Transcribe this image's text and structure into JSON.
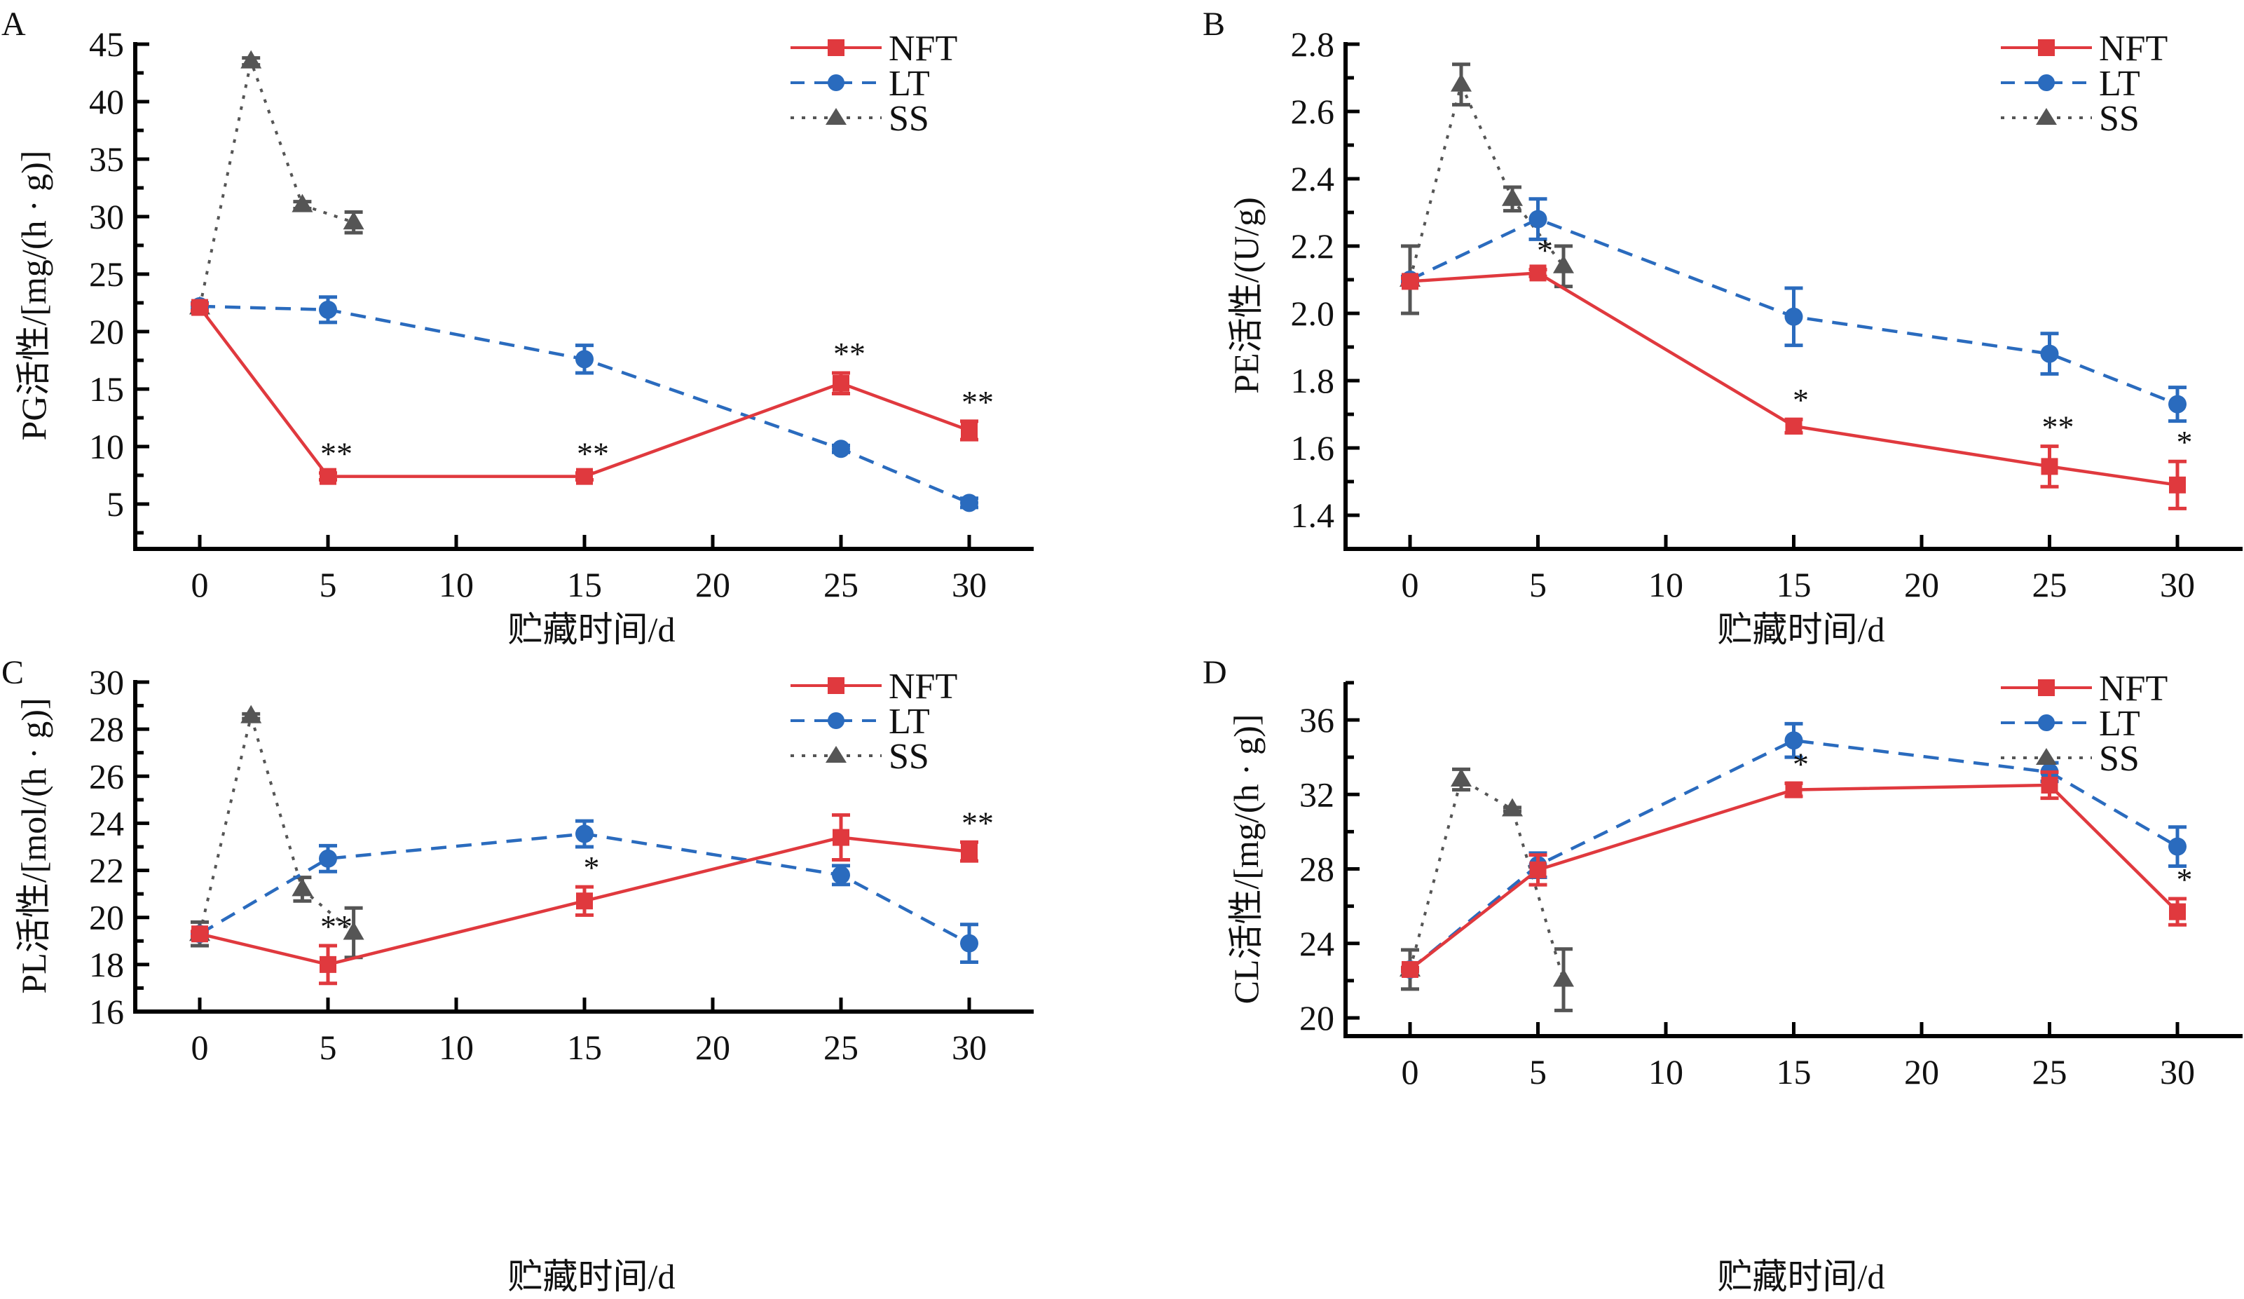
{
  "figure": {
    "colors": {
      "NFT": "#E0393E",
      "LT": "#2A6BBE",
      "SS": "#555555",
      "axis": "#000000"
    },
    "legend_labels": [
      "NFT",
      "LT",
      "SS"
    ]
  },
  "chart_data": [
    {
      "panel": "A",
      "type": "line",
      "title": "",
      "xlabel": "贮藏时间/d",
      "ylabel": "PG活性/[mg/(h · g)]",
      "xticks": [
        0,
        5,
        10,
        15,
        20,
        25,
        30
      ],
      "yticks": [
        5,
        10,
        15,
        20,
        25,
        30,
        35,
        40,
        45
      ],
      "ylim": [
        1,
        45
      ],
      "legend": "top-right",
      "series": [
        {
          "name": "NFT",
          "x": [
            0,
            5,
            15,
            25,
            30
          ],
          "values": [
            22.1,
            7.4,
            7.4,
            15.5,
            11.4
          ],
          "errors": [
            0.3,
            0.3,
            0.3,
            0.9,
            0.8
          ]
        },
        {
          "name": "LT",
          "x": [
            0,
            5,
            15,
            25,
            30
          ],
          "values": [
            22.2,
            21.9,
            17.6,
            9.8,
            5.1
          ],
          "errors": [
            0.3,
            1.1,
            1.2,
            0.3,
            0.4
          ]
        },
        {
          "name": "SS",
          "x": [
            0,
            2,
            4,
            6
          ],
          "values": [
            22.1,
            43.5,
            31.0,
            29.5
          ],
          "errors": [
            0.3,
            0.3,
            0.3,
            0.9
          ]
        }
      ],
      "annotations": [
        {
          "x": 5,
          "series": "NFT",
          "text": "**"
        },
        {
          "x": 15,
          "series": "NFT",
          "text": "**"
        },
        {
          "x": 25,
          "series": "NFT",
          "text": "**"
        },
        {
          "x": 30,
          "series": "NFT",
          "text": "**"
        }
      ]
    },
    {
      "panel": "B",
      "type": "line",
      "title": "",
      "xlabel": "贮藏时间/d",
      "ylabel": "PE活性/(U/g)",
      "xticks": [
        0,
        5,
        10,
        15,
        20,
        25,
        30
      ],
      "yticks": [
        1.4,
        1.6,
        1.8,
        2.0,
        2.2,
        2.4,
        2.6,
        2.8
      ],
      "ytick_labels": [
        "1.4",
        "1.6",
        "1.8",
        "2.0",
        "2.2",
        "2.4",
        "2.6",
        "2.8"
      ],
      "ylim": [
        1.3,
        2.8
      ],
      "legend": "top-right",
      "series": [
        {
          "name": "NFT",
          "x": [
            0,
            5,
            15,
            25,
            30
          ],
          "values": [
            2.095,
            2.12,
            1.665,
            1.545,
            1.49
          ],
          "errors": [
            0.01,
            0.01,
            0.02,
            0.06,
            0.07
          ]
        },
        {
          "name": "LT",
          "x": [
            0,
            5,
            15,
            25,
            30
          ],
          "values": [
            2.1,
            2.28,
            1.99,
            1.88,
            1.73
          ],
          "errors": [
            0.01,
            0.06,
            0.085,
            0.06,
            0.05
          ]
        },
        {
          "name": "SS",
          "x": [
            0,
            2,
            4,
            6
          ],
          "values": [
            2.1,
            2.68,
            2.34,
            2.14
          ],
          "errors": [
            0.1,
            0.06,
            0.035,
            0.06
          ]
        }
      ],
      "annotations": [
        {
          "x": 5,
          "series": "NFT",
          "text": "*"
        },
        {
          "x": 15,
          "series": "NFT",
          "text": "*"
        },
        {
          "x": 25,
          "series": "NFT",
          "text": "**"
        },
        {
          "x": 30,
          "series": "NFT",
          "text": "*"
        }
      ]
    },
    {
      "panel": "C",
      "type": "line",
      "title": "",
      "xlabel": "贮藏时间/d",
      "ylabel": "PL活性/[mol/(h · g)]",
      "xticks": [
        0,
        5,
        10,
        15,
        20,
        25,
        30
      ],
      "yticks": [
        16,
        18,
        20,
        22,
        24,
        26,
        28,
        30
      ],
      "ylim": [
        16,
        30
      ],
      "legend": "top-right",
      "series": [
        {
          "name": "NFT",
          "x": [
            0,
            5,
            15,
            25,
            30
          ],
          "values": [
            19.3,
            18.0,
            20.7,
            23.4,
            22.8
          ],
          "errors": [
            0.1,
            0.8,
            0.6,
            0.95,
            0.4
          ]
        },
        {
          "name": "LT",
          "x": [
            0,
            5,
            15,
            25,
            30
          ],
          "values": [
            19.3,
            22.5,
            23.55,
            21.8,
            18.9
          ],
          "errors": [
            0.1,
            0.55,
            0.55,
            0.4,
            0.8
          ]
        },
        {
          "name": "SS",
          "x": [
            0,
            2,
            4,
            6
          ],
          "values": [
            19.3,
            28.55,
            21.2,
            19.35
          ],
          "errors": [
            0.5,
            0.1,
            0.5,
            1.05
          ]
        }
      ],
      "annotations": [
        {
          "x": 5,
          "series": "NFT",
          "text": "**"
        },
        {
          "x": 15,
          "series": "NFT",
          "text": "*"
        },
        {
          "x": 30,
          "series": "NFT",
          "text": "**"
        }
      ]
    },
    {
      "panel": "D",
      "type": "line",
      "title": "",
      "xlabel": "贮藏时间/d",
      "ylabel": "CL活性/[mg/(h · g)]",
      "xticks": [
        0,
        5,
        10,
        15,
        20,
        25,
        30
      ],
      "yticks": [
        20,
        24,
        28,
        32,
        36
      ],
      "ylim": [
        19,
        38
      ],
      "legend": "top-right",
      "series": [
        {
          "name": "NFT",
          "x": [
            0,
            5,
            15,
            25,
            30
          ],
          "values": [
            22.6,
            27.95,
            32.25,
            32.5,
            25.7
          ],
          "errors": [
            0.1,
            0.8,
            0.35,
            0.7,
            0.7
          ]
        },
        {
          "name": "LT",
          "x": [
            0,
            5,
            15,
            25,
            30
          ],
          "values": [
            22.6,
            28.2,
            34.9,
            33.2,
            29.2
          ],
          "errors": [
            0.1,
            0.65,
            0.9,
            0.5,
            1.05
          ]
        },
        {
          "name": "SS",
          "x": [
            0,
            2,
            4,
            6
          ],
          "values": [
            22.6,
            32.8,
            31.2,
            22.05
          ],
          "errors": [
            1.05,
            0.55,
            0.1,
            1.65
          ]
        }
      ],
      "annotations": [
        {
          "x": 15,
          "series": "NFT",
          "text": "*"
        },
        {
          "x": 30,
          "series": "NFT",
          "text": "*"
        }
      ]
    }
  ]
}
